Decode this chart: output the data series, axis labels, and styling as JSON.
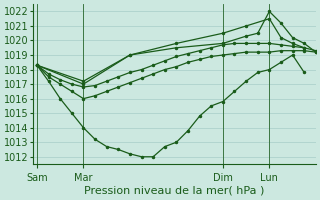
{
  "xlabel": "Pression niveau de la mer( hPa )",
  "bg_color": "#cce8e0",
  "line_color": "#1a5c1a",
  "grid_color": "#a8cec8",
  "ylim": [
    1011.5,
    1022.5
  ],
  "yticks": [
    1012,
    1013,
    1014,
    1015,
    1016,
    1017,
    1018,
    1019,
    1020,
    1021,
    1022
  ],
  "xtick_labels": [
    "Sam",
    "Mar",
    "Dim",
    "Lun"
  ],
  "xtick_positions": [
    0,
    24,
    96,
    120
  ],
  "xlim": [
    -2,
    144
  ],
  "vlines_x": [
    0,
    24,
    96,
    120
  ],
  "line1_x": [
    0,
    6,
    12,
    18,
    24,
    30,
    36,
    42,
    48,
    54,
    60,
    66,
    72,
    78,
    84,
    90,
    96,
    102,
    108,
    114,
    120,
    126,
    132,
    138,
    144
  ],
  "line1_y": [
    1018.3,
    1017.5,
    1017.0,
    1016.5,
    1016.0,
    1016.2,
    1016.5,
    1016.8,
    1017.1,
    1017.4,
    1017.7,
    1018.0,
    1018.2,
    1018.5,
    1018.7,
    1018.9,
    1019.0,
    1019.1,
    1019.2,
    1019.2,
    1019.2,
    1019.3,
    1019.3,
    1019.3,
    1019.2
  ],
  "line2_x": [
    0,
    6,
    12,
    18,
    24,
    30,
    36,
    42,
    48,
    54,
    60,
    66,
    72,
    78,
    84,
    90,
    96,
    102,
    108,
    114,
    120,
    126,
    132,
    138,
    144
  ],
  "line2_y": [
    1018.3,
    1017.7,
    1017.3,
    1017.0,
    1016.8,
    1016.9,
    1017.2,
    1017.5,
    1017.8,
    1018.0,
    1018.3,
    1018.6,
    1018.9,
    1019.1,
    1019.3,
    1019.5,
    1019.7,
    1019.8,
    1019.8,
    1019.8,
    1019.8,
    1019.7,
    1019.6,
    1019.5,
    1019.3
  ],
  "line3_x": [
    0,
    6,
    12,
    18,
    24,
    30,
    36,
    42,
    48,
    54,
    60,
    66,
    72,
    78,
    84,
    90,
    96,
    102,
    108,
    114,
    120,
    126,
    132,
    138
  ],
  "line3_y": [
    1018.3,
    1017.2,
    1016.0,
    1015.0,
    1014.0,
    1013.2,
    1012.7,
    1012.5,
    1012.2,
    1012.0,
    1012.0,
    1012.7,
    1013.0,
    1013.8,
    1014.8,
    1015.5,
    1015.8,
    1016.5,
    1017.2,
    1017.8,
    1018.0,
    1018.5,
    1019.0,
    1017.8
  ],
  "line4_x": [
    0,
    24,
    48,
    72,
    96,
    108,
    114,
    120,
    126,
    132,
    138,
    144
  ],
  "line4_y": [
    1018.3,
    1017.0,
    1019.0,
    1019.5,
    1019.8,
    1020.3,
    1020.5,
    1022.0,
    1021.2,
    1020.2,
    1019.8,
    1019.2
  ],
  "line5_x": [
    0,
    24,
    48,
    72,
    96,
    108,
    120,
    126,
    132,
    138
  ],
  "line5_y": [
    1018.3,
    1017.2,
    1019.0,
    1019.8,
    1020.5,
    1021.0,
    1021.5,
    1020.2,
    1019.8,
    1019.5
  ],
  "marker_size": 3,
  "font_size_ticks": 7,
  "font_size_xlabel": 8
}
